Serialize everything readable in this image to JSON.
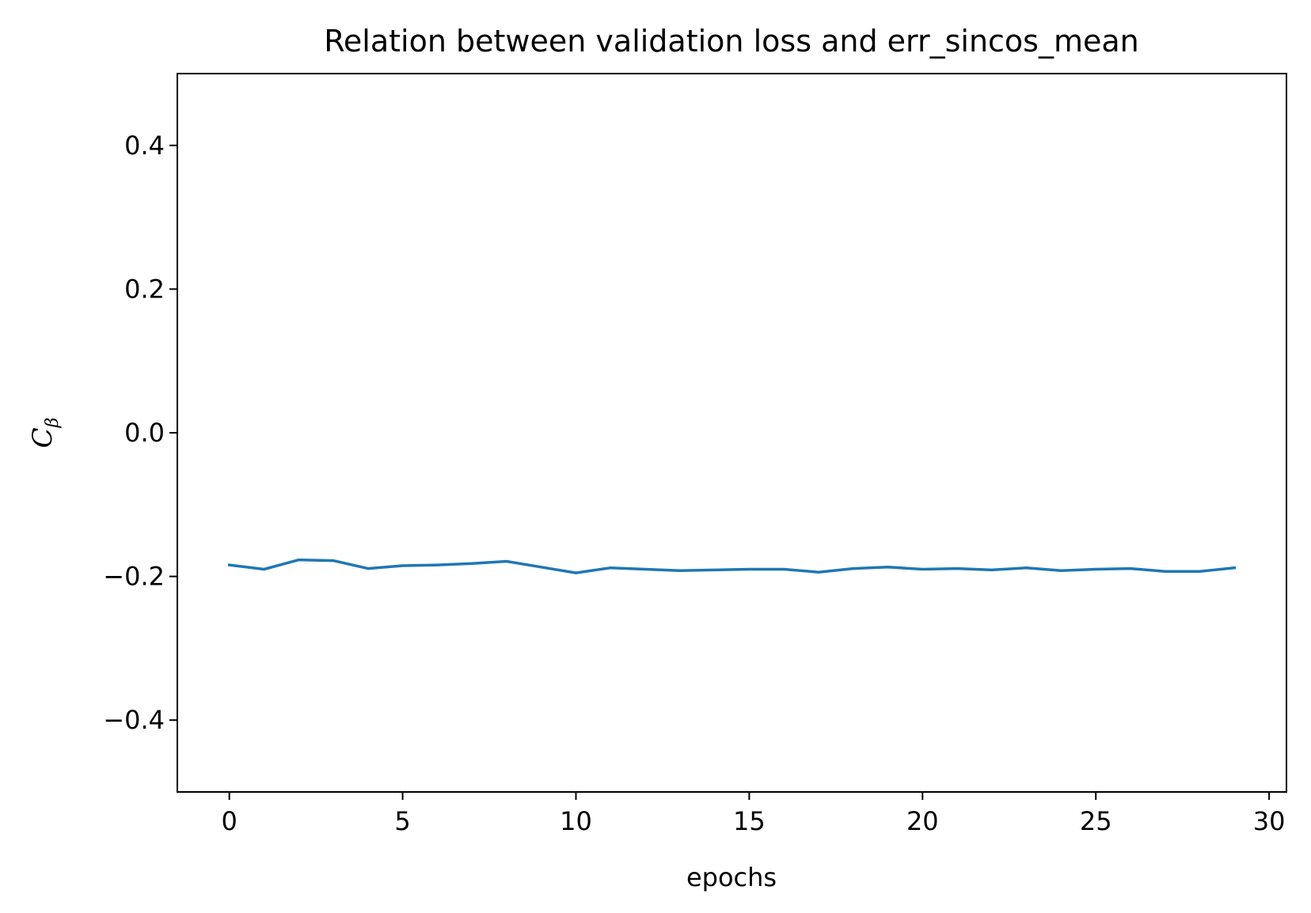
{
  "chart_data": {
    "type": "line",
    "title": "Relation between validation loss and err_sincos_mean",
    "xlabel": "epochs",
    "ylabel": {
      "main": "C",
      "sub": "β"
    },
    "xlim": [
      -1.5,
      30.5
    ],
    "ylim": [
      -0.5,
      0.5
    ],
    "xticks": [
      0,
      5,
      10,
      15,
      20,
      25,
      30
    ],
    "xtick_labels": [
      "0",
      "5",
      "10",
      "15",
      "20",
      "25",
      "30"
    ],
    "yticks": [
      -0.4,
      -0.2,
      0.0,
      0.2,
      0.4
    ],
    "ytick_labels": [
      "−0.4",
      "−0.2",
      "0.0",
      "0.2",
      "0.4"
    ],
    "grid": false,
    "series": [
      {
        "color": "#1f77b4",
        "x": [
          0,
          1,
          2,
          3,
          4,
          5,
          6,
          7,
          8,
          9,
          10,
          11,
          12,
          13,
          14,
          15,
          16,
          17,
          18,
          19,
          20,
          21,
          22,
          23,
          24,
          25,
          26,
          27,
          28,
          29
        ],
        "y": [
          -0.184,
          -0.19,
          -0.177,
          -0.178,
          -0.189,
          -0.185,
          -0.184,
          -0.182,
          -0.179,
          -0.187,
          -0.195,
          -0.188,
          -0.19,
          -0.192,
          -0.191,
          -0.19,
          -0.19,
          -0.194,
          -0.189,
          -0.187,
          -0.19,
          -0.189,
          -0.191,
          -0.188,
          -0.192,
          -0.19,
          -0.189,
          -0.193,
          -0.193,
          -0.188
        ]
      }
    ]
  }
}
